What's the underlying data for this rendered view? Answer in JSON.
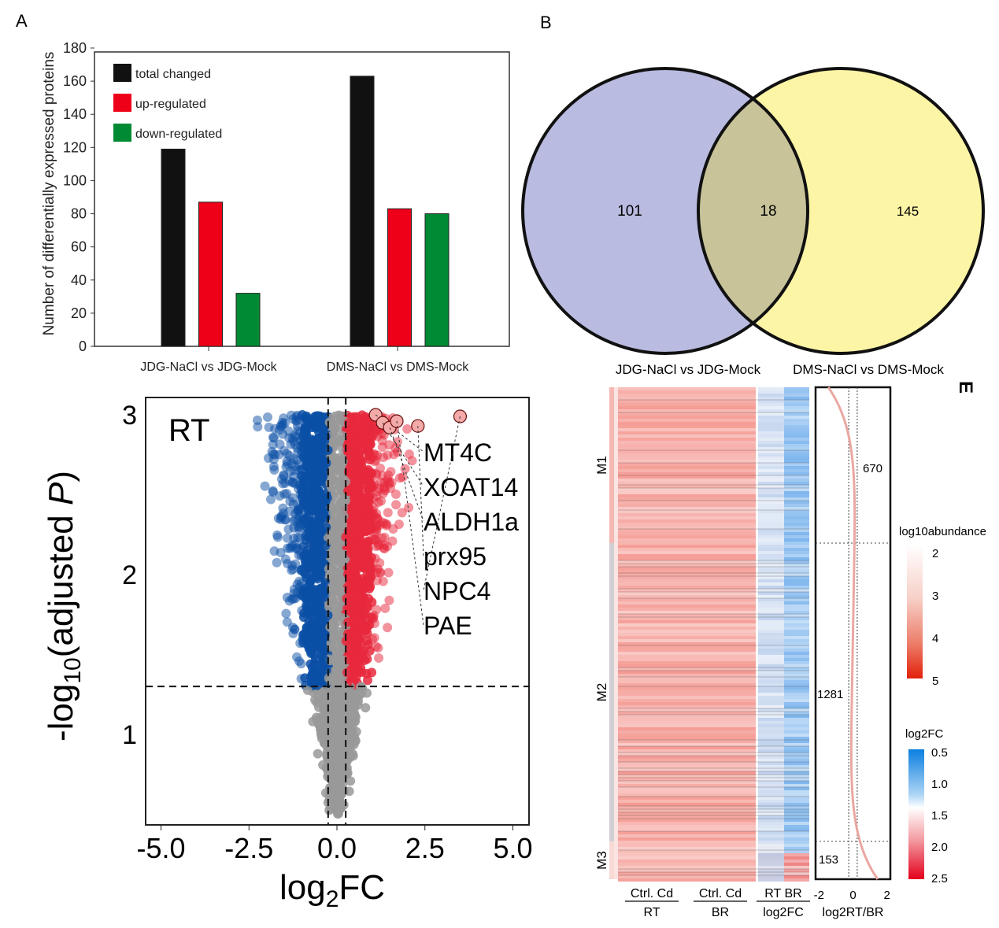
{
  "panel_labels": {
    "a": "A",
    "b": "B",
    "e": "E"
  },
  "chart_data": [
    {
      "type": "bar",
      "ylabel": "Number of differentially expressed proteins",
      "ylim": [
        0,
        180
      ],
      "yticks": [
        0,
        20,
        40,
        60,
        80,
        100,
        120,
        140,
        160,
        180
      ],
      "categories": [
        "JDG-NaCl vs JDG-Mock",
        "DMS-NaCl vs DMS-Mock"
      ],
      "series": [
        {
          "name": "total changed",
          "color": "#111111",
          "values": [
            119,
            163
          ]
        },
        {
          "name": "up-regulated",
          "color": "#ee0018",
          "values": [
            87,
            83
          ]
        },
        {
          "name": "down-regulated",
          "color": "#008a33",
          "values": [
            32,
            80
          ]
        }
      ],
      "legend": "top-left"
    },
    {
      "type": "venn",
      "sets": [
        {
          "name": "JDG-NaCl vs JDG-Mock",
          "only": "101",
          "color": "#b9bbe0"
        },
        {
          "name": "DMS-NaCl vs DMS-Mock",
          "only": "145",
          "color": "#fdf5a6"
        }
      ],
      "intersection": "18",
      "intersection_color": "#c9c39a"
    },
    {
      "type": "scatter",
      "inset_label": "RT",
      "xlabel": "log2FC",
      "ylabel": "-log10(adjusted P)",
      "xlim": [
        -5.5,
        5.5
      ],
      "ylim": [
        0.4,
        3.1
      ],
      "xticks": [
        "-5.0",
        "-2.5",
        "0.0",
        "2.5",
        "5.0"
      ],
      "yticks": [
        "1",
        "2",
        "3"
      ],
      "thresholds": {
        "log2fc": [
          -0.25,
          0.25
        ],
        "neg_log10_p": 1.3
      },
      "colors": {
        "down": "#0b4fa6",
        "up": "#e8283c",
        "ns": "#999999"
      },
      "labeled_genes": [
        "MT4C",
        "XOAT14",
        "ALDH1a",
        "prx95",
        "NPC4",
        "PAE"
      ]
    },
    {
      "type": "heatmap",
      "modules": [
        {
          "name": "M1",
          "count": "670"
        },
        {
          "name": "M2",
          "count": "1281"
        },
        {
          "name": "M3",
          "count": "153"
        }
      ],
      "column_groups": [
        {
          "cols": "Ctrl.  Cd",
          "group": "RT"
        },
        {
          "cols": "Ctrl.  Cd",
          "group": "BR"
        },
        {
          "cols": "RT BR",
          "group": "log2FC"
        }
      ],
      "side_plot": {
        "xlabel": "log2RT/BR",
        "xticks": [
          "-2",
          "0",
          "2"
        ]
      },
      "legend_abundance": {
        "title": "log10abundance",
        "ticks": [
          "2",
          "3",
          "4",
          "5"
        ]
      },
      "legend_fc": {
        "title": "log2FC",
        "ticks": [
          "0.5",
          "1.0",
          "1.5",
          "2.0",
          "2.5"
        ]
      }
    }
  ]
}
